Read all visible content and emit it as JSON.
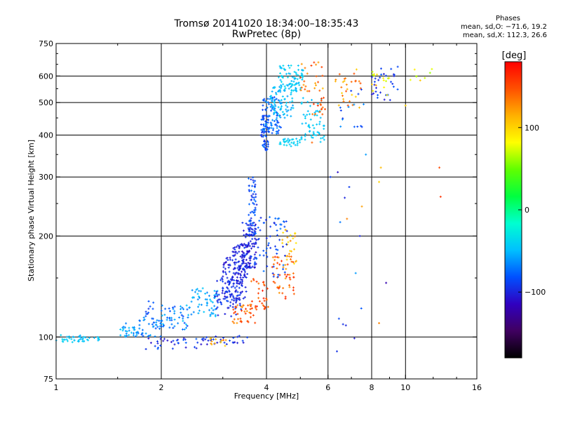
{
  "header": {
    "title": "Tromsø 20141020 18:34:00–18:35:43",
    "subtitle": "RwPretec (8p)",
    "phases_title": "Phases",
    "phases_o": "mean, sd,O: −71.6, 19.2",
    "phases_x": "mean, sd,X: 112.3, 26.6"
  },
  "chart_data": {
    "type": "scatter",
    "title": "Tromsø 20141020 18:34:00–18:35:43",
    "subtitle": "RwPretec (8p)",
    "xlabel": "Frequency [MHz]",
    "ylabel": "Stationary phase Virtual Height [km]",
    "x_scale": "log",
    "y_scale": "log",
    "xlim": [
      1,
      16
    ],
    "ylim": [
      75,
      750
    ],
    "x_ticks": [
      1,
      2,
      4,
      6,
      8,
      10,
      16
    ],
    "x_tick_labels": [
      "1",
      "2",
      "4",
      "6",
      "8",
      "10",
      "16"
    ],
    "y_ticks": [
      75,
      100,
      200,
      300,
      400,
      500,
      600,
      750
    ],
    "y_tick_labels": [
      "75",
      "100",
      "200",
      "300",
      "400",
      "500",
      "600",
      "750"
    ],
    "grid_x": [
      2,
      4,
      6,
      8,
      10
    ],
    "grid_y": [
      100,
      200,
      300,
      400,
      500,
      600
    ],
    "colorbar": {
      "label": "[deg]",
      "range": [
        -180,
        180
      ],
      "ticks": [
        100,
        0,
        -100
      ],
      "tick_labels": [
        "100",
        "0",
        "−100"
      ],
      "colormap": [
        "#000000",
        "#400060",
        "#3000c0",
        "#0050ff",
        "#00c0ff",
        "#00ffd0",
        "#00ff40",
        "#60ff00",
        "#ffff00",
        "#ffb000",
        "#ff5000",
        "#ff0000"
      ]
    },
    "regions": [
      {
        "f": [
          1.0,
          1.2
        ],
        "h": [
          96,
          102
        ],
        "n": 30,
        "phase": [
          -55,
          -35
        ]
      },
      {
        "f": [
          1.2,
          1.35
        ],
        "h": [
          96,
          100
        ],
        "n": 12,
        "phase": [
          -55,
          -40
        ]
      },
      {
        "f": [
          1.5,
          1.75
        ],
        "h": [
          100,
          110
        ],
        "n": 30,
        "phase": [
          -75,
          -45
        ]
      },
      {
        "f": [
          1.7,
          2.0
        ],
        "h": [
          100,
          115
        ],
        "n": 40,
        "phase": [
          -85,
          -55
        ]
      },
      {
        "f": [
          1.8,
          1.9
        ],
        "h": [
          115,
          130
        ],
        "n": 10,
        "phase": [
          -95,
          -75
        ]
      },
      {
        "f": [
          2.0,
          2.4
        ],
        "h": [
          105,
          125
        ],
        "n": 50,
        "phase": [
          -85,
          -45
        ]
      },
      {
        "f": [
          2.4,
          2.9
        ],
        "h": [
          115,
          140
        ],
        "n": 55,
        "phase": [
          -70,
          -45
        ]
      },
      {
        "f": [
          1.8,
          2.6
        ],
        "h": [
          92,
          100
        ],
        "n": 30,
        "phase": [
          -110,
          -75
        ]
      },
      {
        "f": [
          2.6,
          3.6
        ],
        "h": [
          95,
          101
        ],
        "n": 30,
        "phase": [
          -110,
          -85
        ]
      },
      {
        "f": [
          2.75,
          3.1
        ],
        "h": [
          94,
          100
        ],
        "n": 12,
        "phase": [
          100,
          150
        ]
      },
      {
        "f": [
          2.85,
          3.4
        ],
        "h": [
          115,
          150
        ],
        "n": 80,
        "phase": [
          -105,
          -85
        ]
      },
      {
        "f": [
          3.0,
          3.5
        ],
        "h": [
          130,
          175
        ],
        "n": 90,
        "phase": [
          -110,
          -90
        ]
      },
      {
        "f": [
          3.2,
          3.6
        ],
        "h": [
          150,
          190
        ],
        "n": 80,
        "phase": [
          -110,
          -90
        ]
      },
      {
        "f": [
          3.4,
          3.75
        ],
        "h": [
          160,
          220
        ],
        "n": 90,
        "phase": [
          -115,
          -85
        ]
      },
      {
        "f": [
          3.55,
          3.75
        ],
        "h": [
          200,
          300
        ],
        "n": 60,
        "phase": [
          -100,
          -70
        ]
      },
      {
        "f": [
          3.2,
          3.75
        ],
        "h": [
          110,
          125
        ],
        "n": 40,
        "phase": [
          120,
          160
        ]
      },
      {
        "f": [
          3.6,
          4.05
        ],
        "h": [
          120,
          150
        ],
        "n": 30,
        "phase": [
          130,
          170
        ]
      },
      {
        "f": [
          4.15,
          4.8
        ],
        "h": [
          130,
          175
        ],
        "n": 50,
        "phase": [
          120,
          165
        ]
      },
      {
        "f": [
          4.4,
          4.9
        ],
        "h": [
          160,
          210
        ],
        "n": 25,
        "phase": [
          90,
          130
        ]
      },
      {
        "f": [
          3.7,
          4.6
        ],
        "h": [
          150,
          230
        ],
        "n": 60,
        "phase": [
          -100,
          -70
        ]
      },
      {
        "f": [
          3.85,
          4.05
        ],
        "h": [
          360,
          460
        ],
        "n": 60,
        "phase": [
          -100,
          -70
        ]
      },
      {
        "f": [
          3.9,
          4.4
        ],
        "h": [
          400,
          520
        ],
        "n": 80,
        "phase": [
          -90,
          -60
        ]
      },
      {
        "f": [
          4.1,
          4.8
        ],
        "h": [
          450,
          560
        ],
        "n": 70,
        "phase": [
          -60,
          -40
        ]
      },
      {
        "f": [
          4.3,
          5.1
        ],
        "h": [
          540,
          645
        ],
        "n": 80,
        "phase": [
          -55,
          -35
        ]
      },
      {
        "f": [
          4.35,
          5.0
        ],
        "h": [
          370,
          390
        ],
        "n": 30,
        "phase": [
          -50,
          -35
        ]
      },
      {
        "f": [
          5.0,
          5.9
        ],
        "h": [
          380,
          520
        ],
        "n": 60,
        "phase": [
          -50,
          -40
        ]
      },
      {
        "f": [
          5.0,
          5.8
        ],
        "h": [
          540,
          660
        ],
        "n": 25,
        "phase": [
          110,
          160
        ]
      },
      {
        "f": [
          5.4,
          5.9
        ],
        "h": [
          460,
          520
        ],
        "n": 15,
        "phase": [
          130,
          160
        ]
      },
      {
        "f": [
          6.3,
          7.5
        ],
        "h": [
          480,
          640
        ],
        "n": 30,
        "phase": [
          100,
          150
        ]
      },
      {
        "f": [
          6.2,
          7.6
        ],
        "h": [
          420,
          560
        ],
        "n": 15,
        "phase": [
          -95,
          -60
        ]
      },
      {
        "f": [
          8.0,
          9.5
        ],
        "h": [
          500,
          650
        ],
        "n": 30,
        "phase": [
          -110,
          -80
        ]
      },
      {
        "f": [
          8.0,
          9.0
        ],
        "h": [
          520,
          620
        ],
        "n": 15,
        "phase": [
          60,
          120
        ]
      },
      {
        "f": [
          10.0,
          12.0
        ],
        "h": [
          580,
          630
        ],
        "n": 8,
        "phase": [
          60,
          110
        ]
      },
      {
        "f": [
          6.3,
          8.0
        ],
        "h": [
          90,
          130
        ],
        "n": 6,
        "phase": [
          -110,
          -80
        ]
      }
    ],
    "points": [
      {
        "f": 6.4,
        "h": 310,
        "phase": -110
      },
      {
        "f": 6.7,
        "h": 260,
        "phase": -100
      },
      {
        "f": 6.8,
        "h": 225,
        "phase": 130
      },
      {
        "f": 6.9,
        "h": 280,
        "phase": -90
      },
      {
        "f": 7.4,
        "h": 200,
        "phase": -100
      },
      {
        "f": 7.5,
        "h": 245,
        "phase": 120
      },
      {
        "f": 7.7,
        "h": 350,
        "phase": -60
      },
      {
        "f": 8.4,
        "h": 290,
        "phase": 100
      },
      {
        "f": 8.5,
        "h": 320,
        "phase": 110
      },
      {
        "f": 8.8,
        "h": 145,
        "phase": -120
      },
      {
        "f": 10.0,
        "h": 490,
        "phase": 100
      },
      {
        "f": 12.5,
        "h": 320,
        "phase": 150
      },
      {
        "f": 12.6,
        "h": 262,
        "phase": 160
      },
      {
        "f": 8.4,
        "h": 110,
        "phase": 130
      },
      {
        "f": 7.2,
        "h": 155,
        "phase": -60
      },
      {
        "f": 6.1,
        "h": 300,
        "phase": -90
      },
      {
        "f": 5.4,
        "h": 380,
        "phase": 140
      },
      {
        "f": 6.5,
        "h": 220,
        "phase": -70
      }
    ]
  }
}
